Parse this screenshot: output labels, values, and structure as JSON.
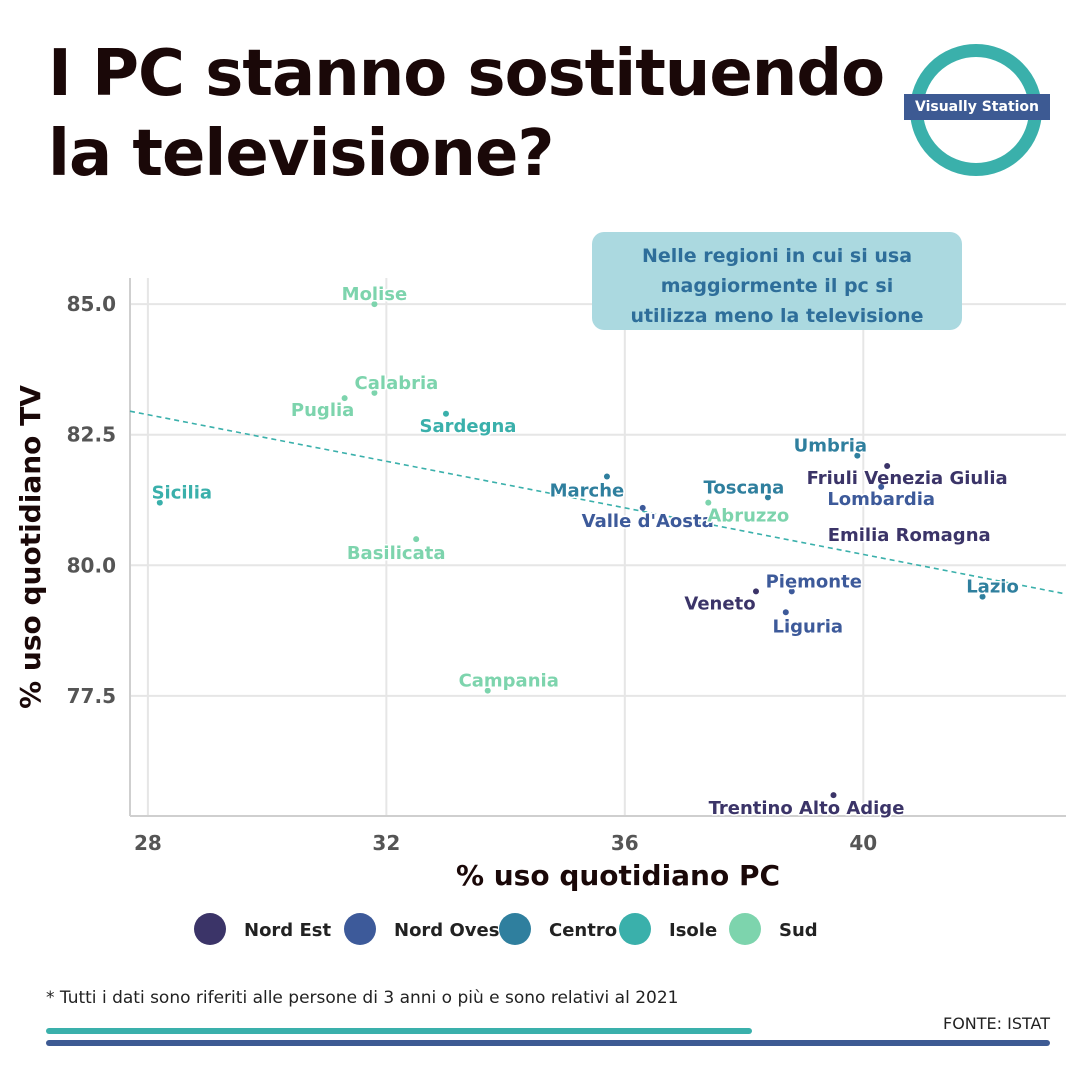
{
  "title": {
    "line1": "I PC stanno sostituendo",
    "line2": "la televisione?"
  },
  "logo": {
    "text": "Visually Station",
    "ring_color": "#3ab0ab",
    "band_color": "#3d5a93"
  },
  "annotation": {
    "lines": [
      "Nelle regioni in cui si usa",
      "maggiormente il pc si",
      "utilizza meno la televisione"
    ],
    "bg_color": "#abd9e0",
    "text_color": "#2e6e9a"
  },
  "footer": {
    "note": "* Tutti i dati sono riferiti alle persone di 3 anni o più e sono relativi al 2021",
    "source": "FONTE: ISTAT"
  },
  "chart_data": {
    "type": "scatter",
    "xlabel": "% uso quotidiano PC",
    "ylabel": "% uso quotidiano TV",
    "xlim": [
      27.7,
      43.4
    ],
    "ylim": [
      75.2,
      85.5
    ],
    "xticks": [
      28,
      32,
      36,
      40
    ],
    "xtick_labels": [
      "28",
      "32",
      "36",
      "40"
    ],
    "yticks": [
      77.5,
      80.0,
      82.5,
      85.0
    ],
    "ytick_labels": [
      "77.5",
      "80.0",
      "82.5",
      "85.0"
    ],
    "grid": true,
    "legend_position": "bottom",
    "trendline": {
      "style": "dashed",
      "color": "#3ab0ab",
      "x": [
        27.7,
        43.4
      ],
      "y": [
        82.95,
        79.45
      ]
    },
    "groups": [
      {
        "name": "Nord Est",
        "color": "#3b3468"
      },
      {
        "name": "Nord Ovest",
        "color": "#3d5a9a"
      },
      {
        "name": "Centro",
        "color": "#2f7f9e"
      },
      {
        "name": "Isole",
        "color": "#3ab0ab"
      },
      {
        "name": "Sud",
        "color": "#7dd4ad"
      }
    ],
    "points": [
      {
        "label": "Molise",
        "group": "Sud",
        "x": 31.8,
        "y": 85.0
      },
      {
        "label": "Calabria",
        "group": "Sud",
        "x": 31.8,
        "y": 83.3
      },
      {
        "label": "Puglia",
        "group": "Sud",
        "x": 31.3,
        "y": 83.2
      },
      {
        "label": "Sardegna",
        "group": "Isole",
        "x": 33.0,
        "y": 82.9
      },
      {
        "label": "Sicilia",
        "group": "Isole",
        "x": 28.2,
        "y": 81.2
      },
      {
        "label": "Basilicata",
        "group": "Sud",
        "x": 32.5,
        "y": 80.5
      },
      {
        "label": "Campania",
        "group": "Sud",
        "x": 33.7,
        "y": 77.6
      },
      {
        "label": "Marche",
        "group": "Centro",
        "x": 35.7,
        "y": 81.7
      },
      {
        "label": "Valle d'Aosta",
        "group": "Nord Ovest",
        "x": 36.3,
        "y": 81.1
      },
      {
        "label": "Abruzzo",
        "group": "Sud",
        "x": 37.4,
        "y": 81.2
      },
      {
        "label": "Toscana",
        "group": "Centro",
        "x": 38.4,
        "y": 81.3
      },
      {
        "label": "Umbria",
        "group": "Centro",
        "x": 39.9,
        "y": 82.1
      },
      {
        "label": "Friuli Venezia Giulia",
        "group": "Nord Est",
        "x": 40.4,
        "y": 81.9
      },
      {
        "label": "Lombardia",
        "group": "Nord Ovest",
        "x": 40.3,
        "y": 81.5
      },
      {
        "label": "Emilia Romagna",
        "group": "Nord Est",
        "x": 40.3,
        "y": 80.5
      },
      {
        "label": "Piemonte",
        "group": "Nord Ovest",
        "x": 38.8,
        "y": 79.5
      },
      {
        "label": "Veneto",
        "group": "Nord Est",
        "x": 38.2,
        "y": 79.5
      },
      {
        "label": "Liguria",
        "group": "Nord Ovest",
        "x": 38.7,
        "y": 79.1
      },
      {
        "label": "Lazio",
        "group": "Centro",
        "x": 42.0,
        "y": 79.4
      },
      {
        "label": "Trentino Alto Adige",
        "group": "Nord Est",
        "x": 39.5,
        "y": 75.6
      }
    ]
  }
}
